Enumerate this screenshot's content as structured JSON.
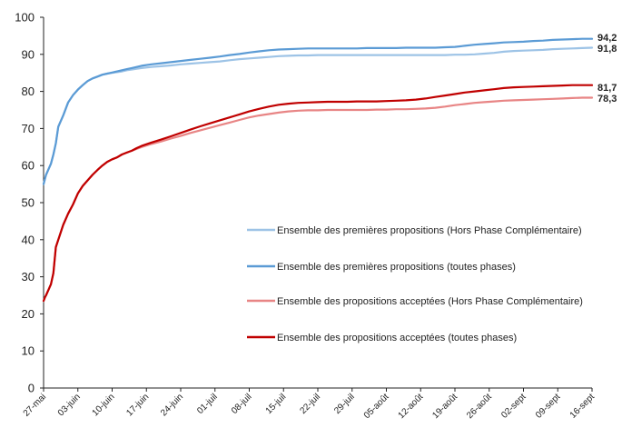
{
  "chart_data": {
    "type": "line",
    "title": "",
    "xlabel": "",
    "ylabel": "",
    "ylim": [
      0,
      100
    ],
    "yticks": [
      0,
      10,
      20,
      30,
      40,
      50,
      60,
      70,
      80,
      90,
      100
    ],
    "grid": false,
    "legend_position": "right-middle",
    "x_tick_labels": [
      "27-mai",
      "03-juin",
      "10-juin",
      "17-juin",
      "24-juin",
      "01-juil",
      "08-juil",
      "15-juil",
      "22-juil",
      "29-juil",
      "05-août",
      "12-août",
      "19-août",
      "26-août",
      "02-sept",
      "09-sept",
      "16-sept"
    ],
    "x": [
      0,
      0.3,
      0.5,
      1,
      1.5,
      2,
      2.5,
      3,
      4,
      5,
      6,
      7,
      8,
      9,
      10,
      11,
      12,
      13,
      14,
      15,
      16,
      17,
      18,
      19,
      20,
      22,
      24,
      26,
      28,
      30,
      32,
      34,
      36,
      38,
      40,
      42,
      44,
      46,
      48,
      50,
      52,
      54,
      56,
      58,
      60,
      62,
      64,
      66,
      68,
      70,
      72,
      74,
      76,
      78,
      80,
      82,
      84,
      86,
      88,
      90,
      92,
      94,
      96,
      98,
      100,
      102,
      104,
      106,
      108,
      110,
      112
    ],
    "series": [
      {
        "name": "Ensemble des premières propositions (Hors Phase Complémentaire)",
        "color": "#9DC3E6",
        "values": [
          55,
          56.5,
          57.5,
          59,
          60.5,
          63,
          66,
          70.5,
          73.5,
          77,
          79,
          80.5,
          81.7,
          82.8,
          83.5,
          84,
          84.5,
          84.8,
          85,
          85.2,
          85.4,
          85.7,
          85.9,
          86.1,
          86.3,
          86.6,
          86.8,
          87.0,
          87.3,
          87.5,
          87.7,
          87.9,
          88.1,
          88.4,
          88.7,
          88.9,
          89.1,
          89.3,
          89.5,
          89.6,
          89.7,
          89.7,
          89.8,
          89.8,
          89.8,
          89.8,
          89.8,
          89.8,
          89.8,
          89.8,
          89.8,
          89.8,
          89.8,
          89.8,
          89.8,
          89.8,
          89.9,
          89.9,
          90.0,
          90.2,
          90.4,
          90.7,
          90.9,
          91.0,
          91.1,
          91.2,
          91.4,
          91.5,
          91.6,
          91.7,
          91.8
        ]
      },
      {
        "name": "Ensemble des premières propositions (toutes phases)",
        "color": "#5B9BD5",
        "values": [
          55,
          56.5,
          57.5,
          59,
          60.5,
          63,
          66,
          70.5,
          73.5,
          77,
          79,
          80.5,
          81.7,
          82.8,
          83.5,
          84,
          84.5,
          84.8,
          85.1,
          85.4,
          85.7,
          86,
          86.3,
          86.6,
          86.9,
          87.3,
          87.6,
          87.9,
          88.2,
          88.5,
          88.8,
          89.1,
          89.4,
          89.8,
          90.1,
          90.5,
          90.8,
          91.1,
          91.3,
          91.4,
          91.5,
          91.6,
          91.6,
          91.6,
          91.6,
          91.6,
          91.6,
          91.7,
          91.7,
          91.7,
          91.7,
          91.8,
          91.8,
          91.8,
          91.8,
          91.9,
          92.0,
          92.3,
          92.6,
          92.8,
          93.0,
          93.2,
          93.3,
          93.4,
          93.6,
          93.7,
          93.9,
          94.0,
          94.1,
          94.2,
          94.2
        ]
      },
      {
        "name": "Ensemble des propositions acceptées (Hors Phase Complémentaire)",
        "color": "#E88585",
        "values": [
          23.5,
          24.5,
          25,
          26.5,
          28,
          31,
          38,
          40,
          44,
          47,
          49.5,
          52.5,
          54.5,
          56,
          57.5,
          58.8,
          60,
          61,
          61.7,
          62.2,
          63,
          63.5,
          64,
          64.5,
          65,
          65.8,
          66.5,
          67.3,
          68.0,
          68.8,
          69.5,
          70.2,
          70.9,
          71.6,
          72.3,
          73.0,
          73.5,
          73.9,
          74.3,
          74.6,
          74.8,
          74.9,
          74.9,
          75.0,
          75.0,
          75.0,
          75.0,
          75.0,
          75.1,
          75.1,
          75.2,
          75.2,
          75.3,
          75.4,
          75.6,
          75.9,
          76.3,
          76.6,
          76.9,
          77.1,
          77.3,
          77.5,
          77.6,
          77.7,
          77.8,
          77.9,
          78.0,
          78.1,
          78.2,
          78.3,
          78.3
        ]
      },
      {
        "name": "Ensemble des propositions acceptées (toutes phases)",
        "color": "#C00000",
        "values": [
          23.5,
          24.5,
          25,
          26.5,
          28,
          31,
          38,
          40,
          44,
          47,
          49.5,
          52.5,
          54.5,
          56,
          57.5,
          58.8,
          60,
          61,
          61.7,
          62.2,
          63,
          63.5,
          64,
          64.7,
          65.3,
          66.2,
          67.0,
          67.9,
          68.8,
          69.7,
          70.6,
          71.4,
          72.2,
          73.0,
          73.8,
          74.6,
          75.3,
          75.9,
          76.4,
          76.7,
          76.9,
          77.0,
          77.1,
          77.2,
          77.2,
          77.2,
          77.3,
          77.3,
          77.3,
          77.4,
          77.5,
          77.6,
          77.8,
          78.1,
          78.5,
          78.9,
          79.3,
          79.7,
          80.0,
          80.3,
          80.6,
          80.9,
          81.1,
          81.2,
          81.3,
          81.4,
          81.5,
          81.6,
          81.7,
          81.7,
          81.7
        ]
      }
    ],
    "end_labels": [
      "91,8",
      "94,2",
      "78,3",
      "81,7"
    ],
    "legend": {
      "entries": [
        "Ensemble des premières propositions (Hors Phase Complémentaire)",
        "Ensemble des premières propositions (toutes phases)",
        "Ensemble des propositions acceptées (Hors Phase Complémentaire)",
        "Ensemble des propositions acceptées (toutes phases)"
      ]
    }
  }
}
